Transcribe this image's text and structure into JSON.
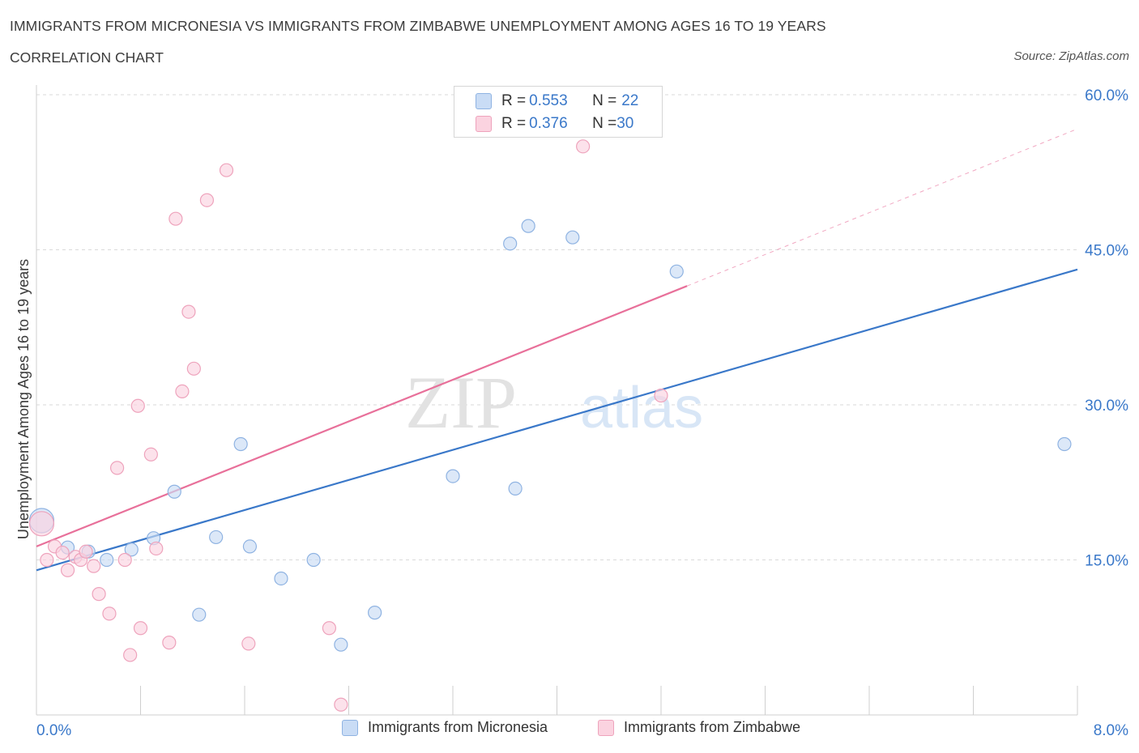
{
  "header": {
    "title": "IMMIGRANTS FROM MICRONESIA VS IMMIGRANTS FROM ZIMBABWE UNEMPLOYMENT AMONG AGES 16 TO 19 YEARS",
    "subtitle": "CORRELATION CHART",
    "source": "Source: ZipAtlas.com"
  },
  "legend_top": {
    "rows": [
      {
        "r_label": "R = ",
        "r_value": "0.553",
        "n_label": "N = ",
        "n_value": "22",
        "color": "#aac8ee"
      },
      {
        "r_label": "R = ",
        "r_value": "0.376",
        "n_label": "N = ",
        "n_value": "30",
        "color": "#f5b8cc"
      }
    ]
  },
  "legend_bottom": [
    {
      "label": "Immigrants from Micronesia",
      "color": "#aac8ee"
    },
    {
      "label": "Immigrants from Zimbabwe",
      "color": "#f5b8cc"
    }
  ],
  "watermark": {
    "part1": "ZIP",
    "part2": "atlas"
  },
  "chart_data": {
    "type": "scatter",
    "title": "IMMIGRANTS FROM MICRONESIA VS IMMIGRANTS FROM ZIMBABWE UNEMPLOYMENT AMONG AGES 16 TO 19 YEARS",
    "ylabel": "Unemployment Among Ages 16 to 19 years",
    "xlabel": "",
    "xlim": [
      0,
      8
    ],
    "ylim": [
      0,
      60
    ],
    "x_tick_labels": [
      "0.0%",
      "8.0%"
    ],
    "y_ticks": [
      15,
      30,
      45,
      60
    ],
    "y_tick_labels": [
      "15.0%",
      "30.0%",
      "45.0%",
      "60.0%"
    ],
    "grid": true,
    "legend_position": "top-center",
    "colors": {
      "micronesia": "#3a78c9",
      "zimbabwe": "#e8709a",
      "micronesia_fill": "#aac8ee",
      "zimbabwe_fill": "#f5b8cc"
    },
    "series": [
      {
        "name": "Immigrants from Micronesia",
        "points": [
          {
            "x": 0.04,
            "y": 18.8
          },
          {
            "x": 0.24,
            "y": 16.2
          },
          {
            "x": 0.4,
            "y": 15.8
          },
          {
            "x": 0.54,
            "y": 15.0
          },
          {
            "x": 0.73,
            "y": 16.0
          },
          {
            "x": 0.9,
            "y": 17.1
          },
          {
            "x": 1.06,
            "y": 21.6
          },
          {
            "x": 1.38,
            "y": 17.2
          },
          {
            "x": 1.57,
            "y": 26.2
          },
          {
            "x": 1.64,
            "y": 16.3
          },
          {
            "x": 1.25,
            "y": 9.7
          },
          {
            "x": 1.88,
            "y": 13.2
          },
          {
            "x": 2.13,
            "y": 15.0
          },
          {
            "x": 2.34,
            "y": 6.8
          },
          {
            "x": 2.6,
            "y": 9.9
          },
          {
            "x": 3.2,
            "y": 23.1
          },
          {
            "x": 3.64,
            "y": 45.6
          },
          {
            "x": 3.68,
            "y": 21.9
          },
          {
            "x": 3.78,
            "y": 47.3
          },
          {
            "x": 4.12,
            "y": 46.2
          },
          {
            "x": 4.92,
            "y": 42.9
          },
          {
            "x": 7.9,
            "y": 26.2
          }
        ],
        "trend": {
          "x": [
            0,
            8
          ],
          "y": [
            14.0,
            43.1
          ]
        }
      },
      {
        "name": "Immigrants from Zimbabwe",
        "points": [
          {
            "x": 0.04,
            "y": 18.5
          },
          {
            "x": 0.08,
            "y": 15.0
          },
          {
            "x": 0.14,
            "y": 16.3
          },
          {
            "x": 0.2,
            "y": 15.7
          },
          {
            "x": 0.24,
            "y": 14.0
          },
          {
            "x": 0.3,
            "y": 15.3
          },
          {
            "x": 0.34,
            "y": 15.0
          },
          {
            "x": 0.38,
            "y": 15.8
          },
          {
            "x": 0.44,
            "y": 14.4
          },
          {
            "x": 0.48,
            "y": 11.7
          },
          {
            "x": 0.56,
            "y": 9.8
          },
          {
            "x": 0.62,
            "y": 23.9
          },
          {
            "x": 0.68,
            "y": 15.0
          },
          {
            "x": 0.72,
            "y": 5.8
          },
          {
            "x": 0.78,
            "y": 29.9
          },
          {
            "x": 0.8,
            "y": 8.4
          },
          {
            "x": 0.88,
            "y": 25.2
          },
          {
            "x": 0.92,
            "y": 16.1
          },
          {
            "x": 1.02,
            "y": 7.0
          },
          {
            "x": 1.07,
            "y": 48.0
          },
          {
            "x": 1.12,
            "y": 31.3
          },
          {
            "x": 1.17,
            "y": 39.0
          },
          {
            "x": 1.21,
            "y": 33.5
          },
          {
            "x": 1.31,
            "y": 49.8
          },
          {
            "x": 1.46,
            "y": 52.7
          },
          {
            "x": 1.63,
            "y": 6.9
          },
          {
            "x": 2.25,
            "y": 8.4
          },
          {
            "x": 2.34,
            "y": 1.0
          },
          {
            "x": 4.2,
            "y": 55.0
          },
          {
            "x": 4.8,
            "y": 30.9
          }
        ],
        "trend": {
          "x": [
            0,
            5.0
          ],
          "y": [
            16.3,
            41.5
          ],
          "dashed_extension": {
            "x": [
              5.0,
              8.0
            ],
            "y": [
              41.5,
              56.7
            ]
          }
        }
      }
    ]
  }
}
